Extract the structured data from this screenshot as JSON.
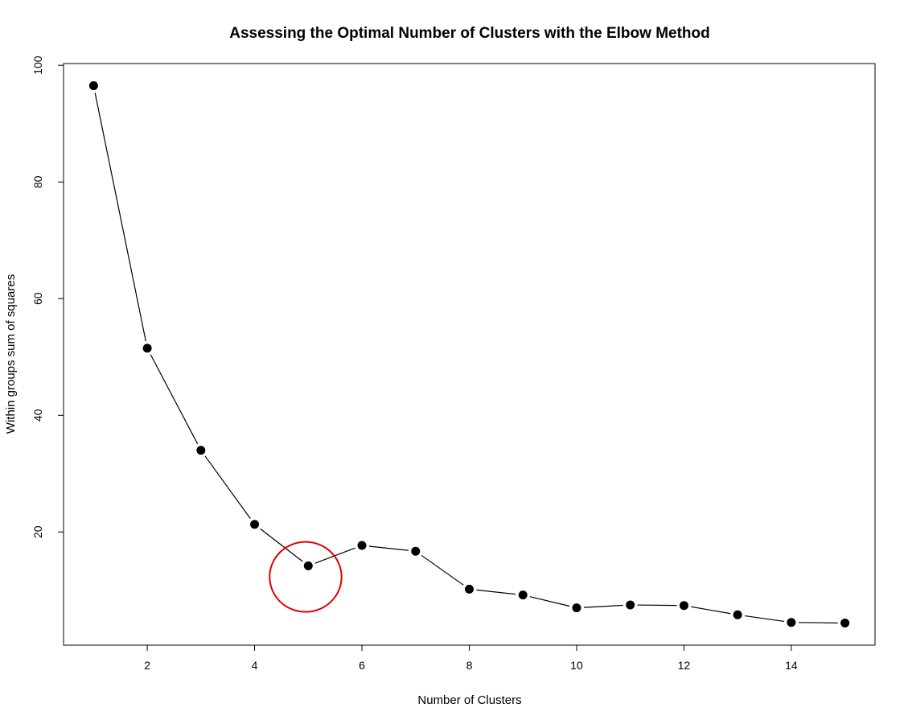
{
  "chart_data": {
    "type": "line",
    "title": "Assessing the Optimal Number of Clusters with the Elbow Method",
    "xlabel": "Number of Clusters",
    "ylabel": "Within groups sum of squares",
    "x": [
      1,
      2,
      3,
      4,
      5,
      6,
      7,
      8,
      9,
      10,
      11,
      12,
      13,
      14,
      15
    ],
    "series": [
      {
        "values": [
          96.5,
          51.5,
          34.0,
          21.3,
          14.2,
          17.7,
          16.7,
          10.2,
          9.2,
          7.0,
          7.5,
          7.4,
          5.8,
          4.5,
          4.4
        ]
      }
    ],
    "xlim": [
      0.44,
      15.56
    ],
    "ylim": [
      0.6,
      100.3
    ],
    "xticks": [
      2,
      4,
      6,
      8,
      10,
      12,
      14
    ],
    "yticks": [
      20,
      40,
      60,
      80,
      100
    ],
    "grid": false,
    "legend": "none",
    "line_color": "#000000",
    "point_color": "#000000",
    "annotation": {
      "type": "circle",
      "x": 4.95,
      "y": 12.3,
      "rx": 0.67,
      "ry": 6.0,
      "color": "#e00000"
    }
  }
}
